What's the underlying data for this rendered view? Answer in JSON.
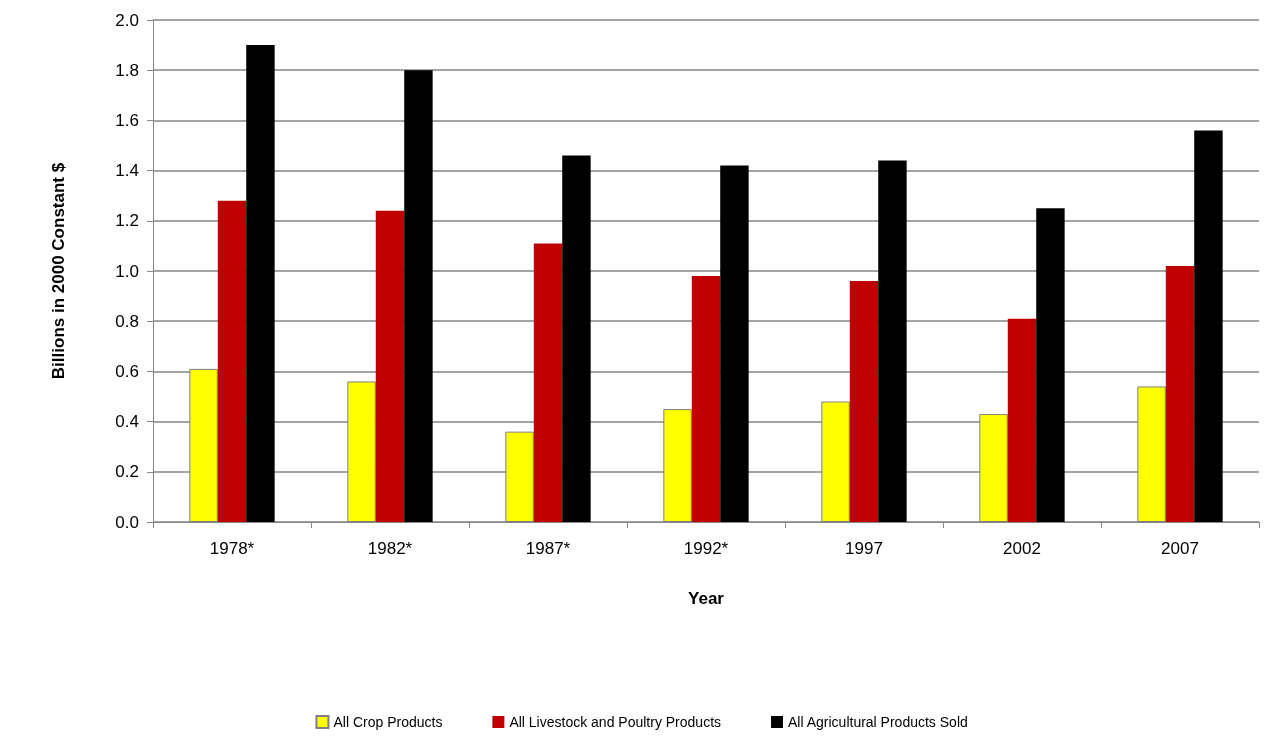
{
  "chart_data": {
    "type": "bar",
    "xlabel": "Year",
    "ylabel": "Billions in 2000 Constant $",
    "categories": [
      "1978*",
      "1982*",
      "1987*",
      "1992*",
      "1997",
      "2002",
      "2007"
    ],
    "series": [
      {
        "name": "All Crop Products",
        "color": "#ffff00",
        "values": [
          0.61,
          0.56,
          0.36,
          0.45,
          0.48,
          0.43,
          0.54
        ]
      },
      {
        "name": "All Livestock and Poultry Products",
        "color": "#c00000",
        "values": [
          1.28,
          1.24,
          1.11,
          0.98,
          0.96,
          0.81,
          1.02
        ]
      },
      {
        "name": "All Agricultural Products Sold",
        "color": "#000000",
        "values": [
          1.9,
          1.8,
          1.46,
          1.42,
          1.44,
          1.25,
          1.56
        ]
      }
    ],
    "ylim": [
      0,
      2
    ],
    "yticks": [
      {
        "value": 0,
        "label": "0.0"
      },
      {
        "value": 0.2,
        "label": "0.2"
      },
      {
        "value": 0.4,
        "label": "0.4"
      },
      {
        "value": 0.6,
        "label": "0.6"
      },
      {
        "value": 0.8,
        "label": "0.8"
      },
      {
        "value": 1,
        "label": "1.0"
      },
      {
        "value": 1.2,
        "label": "1.2"
      },
      {
        "value": 1.4,
        "label": "1.4"
      },
      {
        "value": 1.6,
        "label": "1.6"
      },
      {
        "value": 1.8,
        "label": "1.8"
      },
      {
        "value": 2,
        "label": "2.0"
      }
    ],
    "grid": "y",
    "legend": "bottom"
  }
}
